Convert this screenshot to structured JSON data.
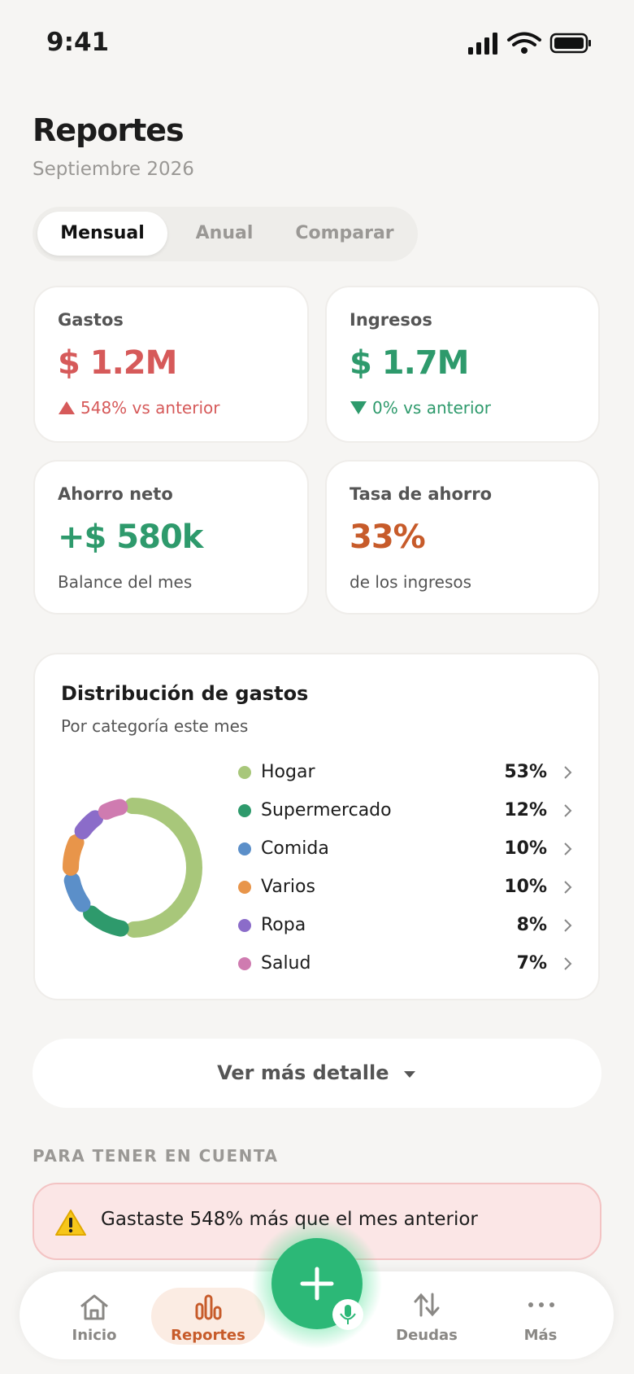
{
  "status": {
    "time": "9:41"
  },
  "header": {
    "title": "Reportes",
    "subtitle": "Septiembre 2026"
  },
  "tabs": [
    "Mensual",
    "Anual",
    "Comparar"
  ],
  "cards": [
    {
      "label": "Gastos",
      "value": "$ 1.2M",
      "note": "548% vs anterior"
    },
    {
      "label": "Ingresos",
      "value": "$ 1.7M",
      "note": "0% vs anterior"
    },
    {
      "label": "Ahorro neto",
      "value": "+$ 580k",
      "note": "Balance del mes"
    },
    {
      "label": "Tasa de ahorro",
      "value": "33%",
      "note": "de los ingresos"
    }
  ],
  "chart": {
    "type": "donut",
    "title": "Distribución de gastos",
    "subtitle": "Por categoría este mes",
    "items": [
      {
        "name": "Hogar",
        "value": 53,
        "label": "53%",
        "color": "#a8c77a"
      },
      {
        "name": "Supermercado",
        "value": 12,
        "label": "12%",
        "color": "#2e9a6c"
      },
      {
        "name": "Comida",
        "value": 10,
        "label": "10%",
        "color": "#5b8fc9"
      },
      {
        "name": "Varios",
        "value": 10,
        "label": "10%",
        "color": "#e8954a"
      },
      {
        "name": "Ropa",
        "value": 8,
        "label": "8%",
        "color": "#8b6cc9"
      },
      {
        "name": "Salud",
        "value": 7,
        "label": "7%",
        "color": "#cf7bb0"
      }
    ]
  },
  "detail_button": "Ver más detalle",
  "section_title": "PARA TENER EN CUENTA",
  "alerts": [
    "Gastaste 548% más que el mes anterior"
  ],
  "nav": [
    "Inicio",
    "Reportes",
    "Deudas",
    "Más"
  ]
}
